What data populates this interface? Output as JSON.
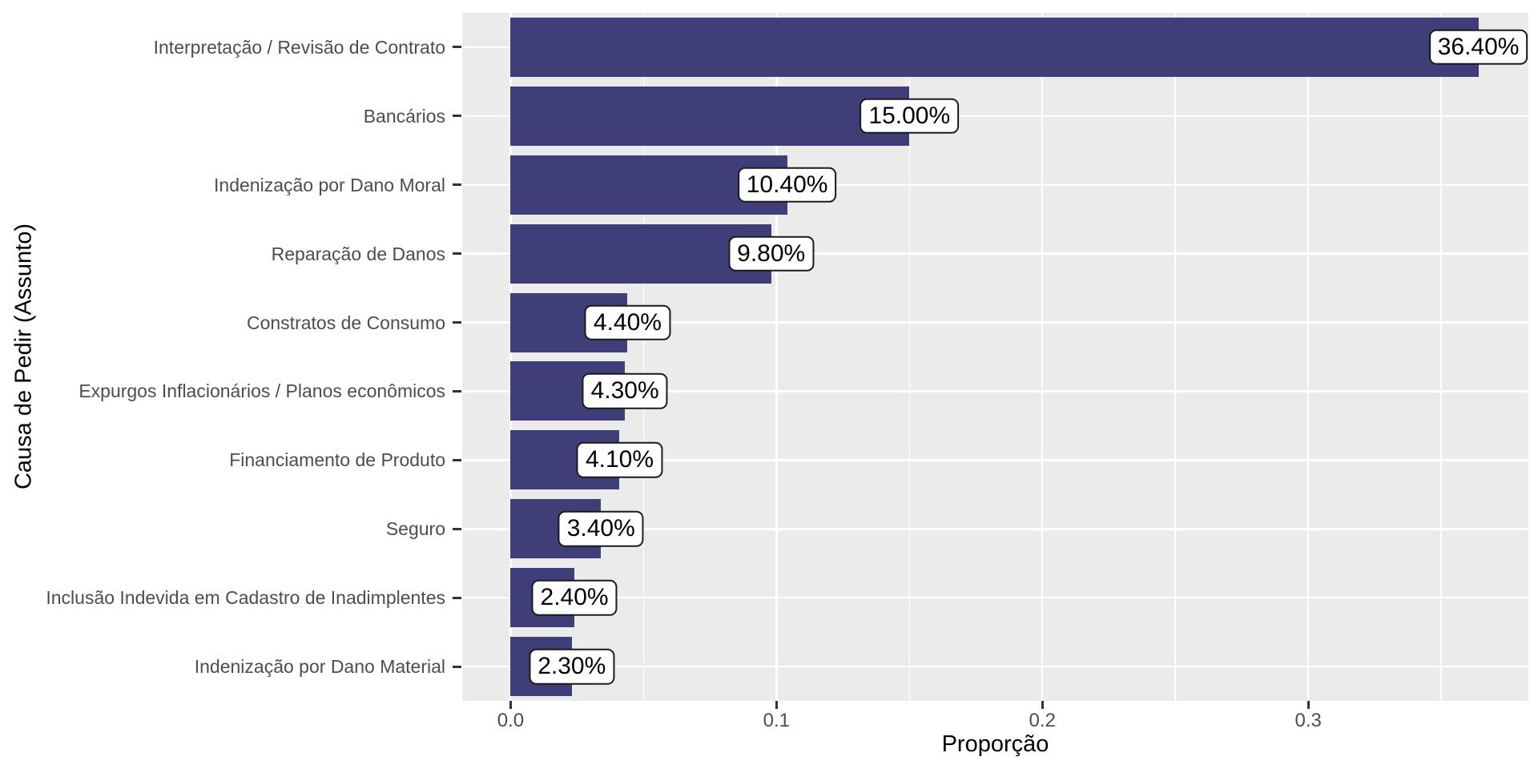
{
  "chart_data": {
    "type": "bar",
    "orientation": "horizontal",
    "xlabel": "Proporção",
    "ylabel": "Causa de Pedir (Assunto)",
    "categories": [
      "Interpretação / Revisão de Contrato",
      "Bancários",
      "Indenização por Dano Moral",
      "Reparação de Danos",
      "Constratos de Consumo",
      "Expurgos Inflacionários / Planos econômicos",
      "Financiamento de Produto",
      "Seguro",
      "Inclusão Indevida em Cadastro de Inadimplentes",
      "Indenização por Dano Material"
    ],
    "values": [
      0.364,
      0.15,
      0.104,
      0.098,
      0.044,
      0.043,
      0.041,
      0.034,
      0.024,
      0.023
    ],
    "bar_labels": [
      "36.40%",
      "15.00%",
      "10.40%",
      "9.80%",
      "4.40%",
      "4.30%",
      "4.10%",
      "3.40%",
      "2.40%",
      "2.30%"
    ],
    "x_ticks": [
      {
        "label": "0.0",
        "value": 0.0
      },
      {
        "label": "0.1",
        "value": 0.1
      },
      {
        "label": "0.2",
        "value": 0.2
      },
      {
        "label": "0.3",
        "value": 0.3
      }
    ],
    "x_minor_ticks": [
      0.05,
      0.15,
      0.25,
      0.35
    ],
    "xlim": [
      -0.0182,
      0.3828
    ],
    "grid": "major-and-minor, white on gray panel",
    "legend_position": "none",
    "colors": {
      "bar_fill": "#3F3E78",
      "panel_background": "#EBEBEB",
      "grid": "#FFFFFF",
      "axis_text": "#4D4D4D",
      "axis_title": "#000000",
      "tick_mark": "#333333",
      "label_box_fill": "#FFFFFF",
      "label_box_border": "#1A1A1A",
      "label_text": "#000000"
    }
  }
}
